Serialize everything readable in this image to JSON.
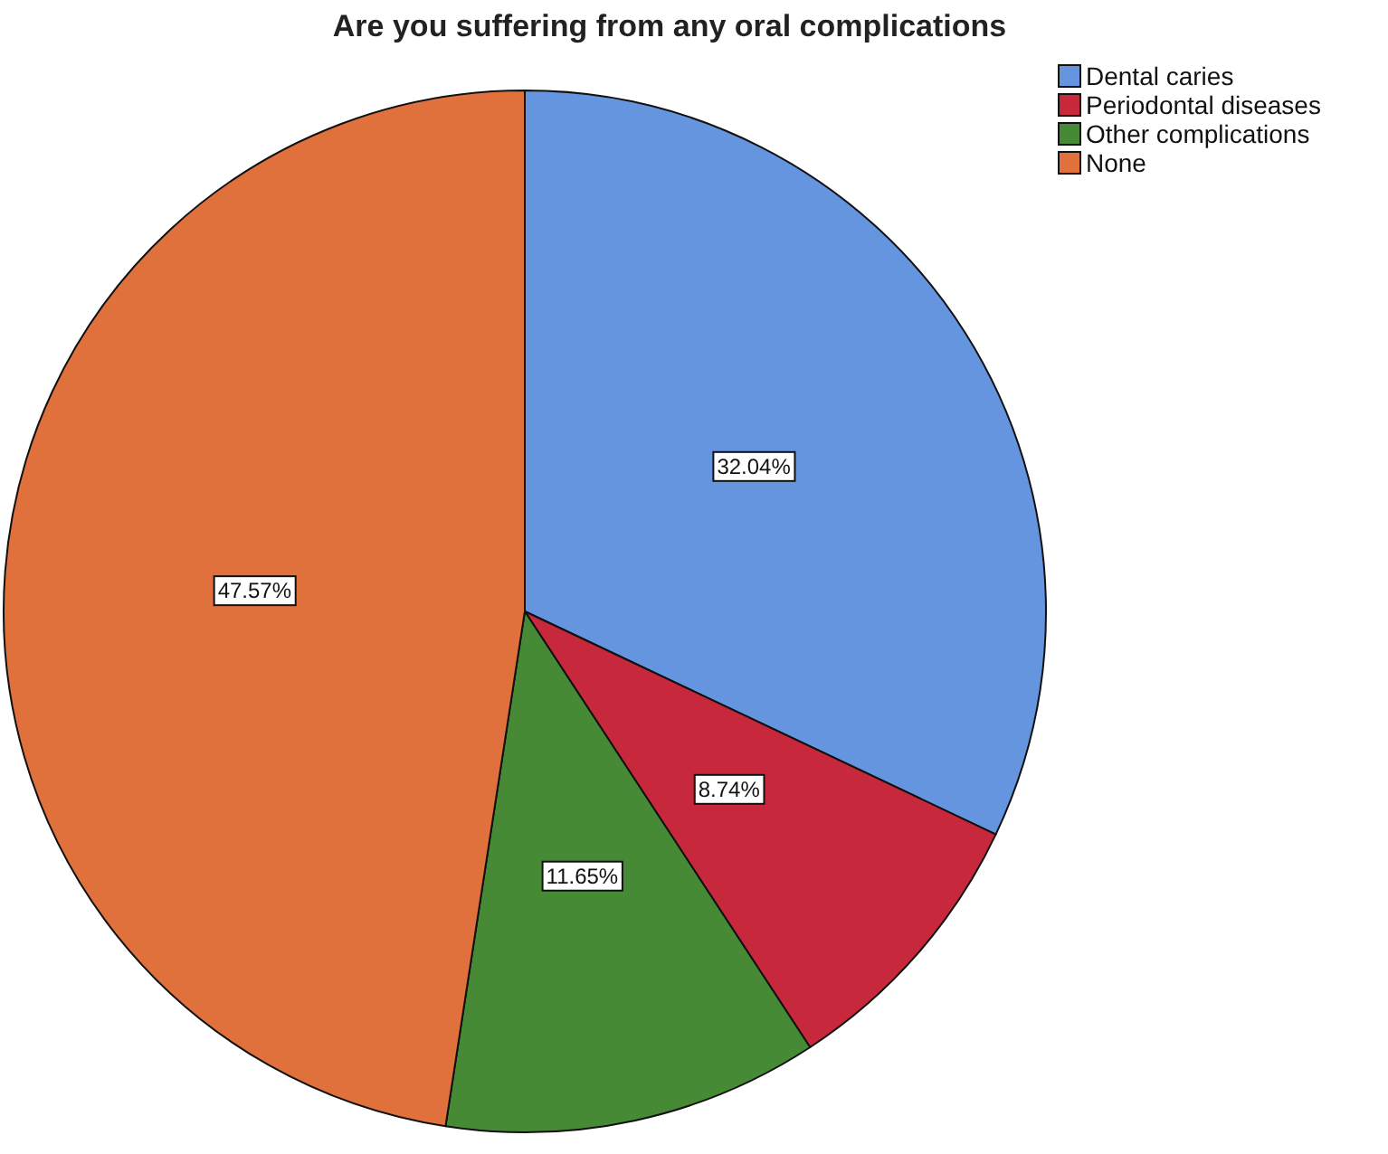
{
  "chart_data": {
    "type": "pie",
    "title": "Are you suffering from any oral complications",
    "categories": [
      "Dental caries",
      "Periodontal diseases",
      "Other complications",
      "None"
    ],
    "values": [
      32.04,
      8.74,
      11.65,
      47.57
    ],
    "colors": [
      "#6495de",
      "#c8283c",
      "#478a35",
      "#e0703c"
    ],
    "data_labels": true,
    "value_labels": [
      "32.04%",
      "8.74%",
      "11.65%",
      "47.57%"
    ],
    "legend": "top right"
  }
}
